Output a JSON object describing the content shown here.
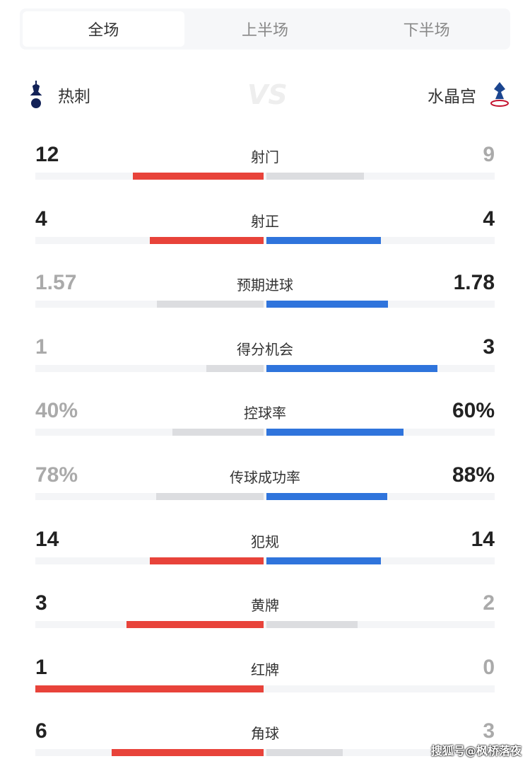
{
  "tabs": [
    {
      "label": "全场",
      "active": true
    },
    {
      "label": "上半场",
      "active": false
    },
    {
      "label": "下半场",
      "active": false
    }
  ],
  "home": {
    "name": "热刺",
    "icon": "tottenham-crest-icon"
  },
  "away": {
    "name": "水晶宫",
    "icon": "crystal-palace-crest-icon"
  },
  "vs": "VS",
  "colors": {
    "home": "#e8433a",
    "away": "#2f74dc",
    "lose": "#dcdde0"
  },
  "stats": [
    {
      "label": "射门",
      "home": "12",
      "away": "9",
      "hv": 12,
      "av": 9
    },
    {
      "label": "射正",
      "home": "4",
      "away": "4",
      "hv": 4,
      "av": 4
    },
    {
      "label": "预期进球",
      "home": "1.57",
      "away": "1.78",
      "hv": 1.57,
      "av": 1.78
    },
    {
      "label": "得分机会",
      "home": "1",
      "away": "3",
      "hv": 1,
      "av": 3
    },
    {
      "label": "控球率",
      "home": "40%",
      "away": "60%",
      "hv": 40,
      "av": 60
    },
    {
      "label": "传球成功率",
      "home": "78%",
      "away": "88%",
      "hv": 78,
      "av": 88
    },
    {
      "label": "犯规",
      "home": "14",
      "away": "14",
      "hv": 14,
      "av": 14
    },
    {
      "label": "黄牌",
      "home": "3",
      "away": "2",
      "hv": 3,
      "av": 2
    },
    {
      "label": "红牌",
      "home": "1",
      "away": "0",
      "hv": 1,
      "av": 0
    },
    {
      "label": "角球",
      "home": "6",
      "away": "3",
      "hv": 6,
      "av": 3
    }
  ],
  "watermark": "搜狐号@枫桥落夜"
}
